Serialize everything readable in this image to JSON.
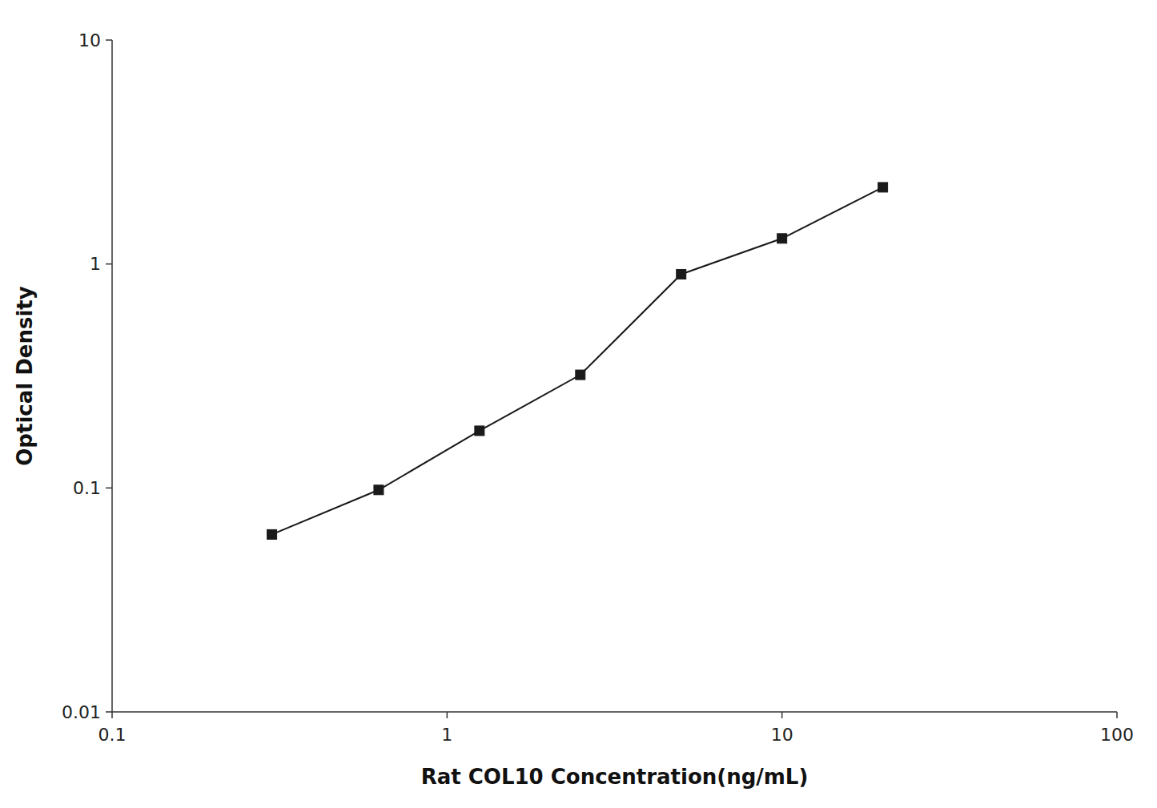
{
  "chart_data": {
    "type": "line",
    "x": [
      0.3,
      0.625,
      1.25,
      2.5,
      5.0,
      10.0,
      20.0
    ],
    "values": [
      0.062,
      0.098,
      0.18,
      0.32,
      0.9,
      1.3,
      2.2
    ],
    "xlabel": "Rat COL10 Concentration(ng/mL)",
    "ylabel": "Optical Density",
    "xlim": [
      0.1,
      100
    ],
    "ylim": [
      0.01,
      10
    ],
    "xticks": [
      0.1,
      1,
      10,
      100
    ],
    "yticks": [
      0.01,
      0.1,
      1,
      10
    ],
    "log": true,
    "grid": false,
    "color": "#1a1a1a",
    "marker": "square"
  }
}
